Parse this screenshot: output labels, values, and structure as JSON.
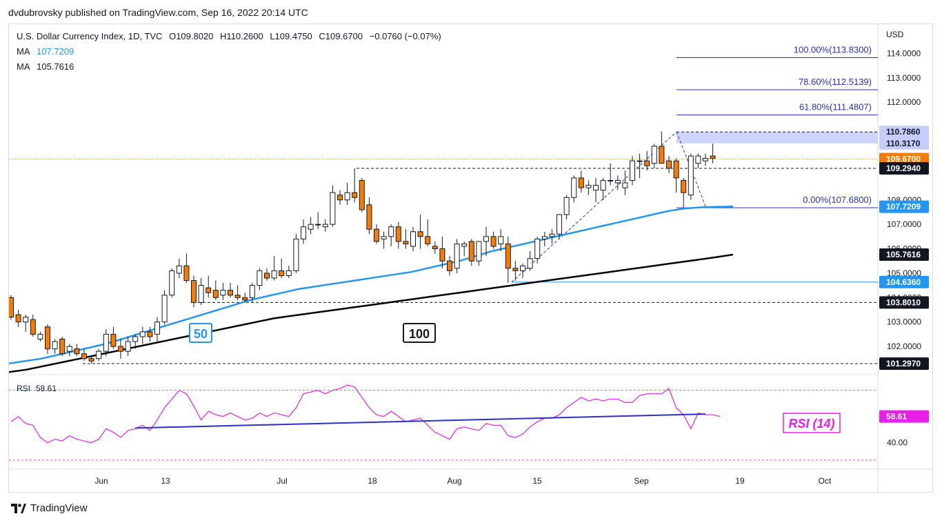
{
  "header": {
    "published": "dvdubrovsky published on TradingView.com, Sep 16, 2022 20:14 UTC",
    "symbol": "U.S. Dollar Currency Index, 1D, TVC",
    "open": "O109.8020",
    "high": "H110.2600",
    "low": "L109.4750",
    "close": "C109.6700",
    "change": "−0.0760 (−0.07%)",
    "ma1_label": "MA",
    "ma1_value": "107.7209",
    "ma2_label": "MA",
    "ma2_value": "105.7616"
  },
  "footer": {
    "brand": "TradingView"
  },
  "colors": {
    "up_body": "#ffffff",
    "down_body": "#f57c00",
    "candle_border": "#131722",
    "ma50": "#2196f3",
    "ma100": "#000000",
    "rsi": "#e91ee9",
    "fib": "#2a2ec8",
    "zone": "#c6cdfc",
    "price_line": "#f57c00"
  },
  "chart_data": {
    "type": "candlestick",
    "y_axis_label": "USD",
    "ylim": [
      100.9,
      115.2
    ],
    "y_ticks": [
      "114.0000",
      "113.0000",
      "112.0000",
      "108.0000",
      "107.0000",
      "106.0000",
      "105.0000",
      "104.0000",
      "103.0000",
      "102.0000"
    ],
    "x_ticks": [
      "Jun",
      "13",
      "Jul",
      "18",
      "Aug",
      "15",
      "Sep",
      "19",
      "Oct"
    ],
    "candles": [
      {
        "o": 104.0,
        "h": 104.1,
        "l": 103.1,
        "c": 103.2
      },
      {
        "o": 103.3,
        "h": 103.5,
        "l": 102.8,
        "c": 103.0
      },
      {
        "o": 103.0,
        "h": 103.3,
        "l": 102.6,
        "c": 103.2
      },
      {
        "o": 103.1,
        "h": 103.3,
        "l": 102.4,
        "c": 102.5
      },
      {
        "o": 102.3,
        "h": 102.6,
        "l": 102.2,
        "c": 102.5
      },
      {
        "o": 102.8,
        "h": 102.9,
        "l": 101.7,
        "c": 101.9
      },
      {
        "o": 101.9,
        "h": 102.3,
        "l": 101.7,
        "c": 102.2
      },
      {
        "o": 102.3,
        "h": 102.4,
        "l": 101.6,
        "c": 101.7
      },
      {
        "o": 101.8,
        "h": 102.1,
        "l": 101.6,
        "c": 102.0
      },
      {
        "o": 101.9,
        "h": 102.1,
        "l": 101.6,
        "c": 101.7
      },
      {
        "o": 101.7,
        "h": 101.9,
        "l": 101.4,
        "c": 101.5
      },
      {
        "o": 101.5,
        "h": 101.6,
        "l": 101.3,
        "c": 101.4
      },
      {
        "o": 101.5,
        "h": 101.9,
        "l": 101.4,
        "c": 101.8
      },
      {
        "o": 101.8,
        "h": 102.7,
        "l": 101.6,
        "c": 102.5
      },
      {
        "o": 102.5,
        "h": 102.8,
        "l": 101.9,
        "c": 102.0
      },
      {
        "o": 102.0,
        "h": 102.3,
        "l": 101.5,
        "c": 101.8
      },
      {
        "o": 101.8,
        "h": 102.4,
        "l": 101.6,
        "c": 102.2
      },
      {
        "o": 102.2,
        "h": 102.5,
        "l": 101.9,
        "c": 102.4
      },
      {
        "o": 102.4,
        "h": 102.8,
        "l": 102.1,
        "c": 102.6
      },
      {
        "o": 102.6,
        "h": 102.8,
        "l": 102.2,
        "c": 102.4
      },
      {
        "o": 102.5,
        "h": 103.2,
        "l": 102.2,
        "c": 103.0
      },
      {
        "o": 103.0,
        "h": 104.3,
        "l": 102.9,
        "c": 104.1
      },
      {
        "o": 104.1,
        "h": 105.2,
        "l": 104.0,
        "c": 105.1
      },
      {
        "o": 105.0,
        "h": 105.6,
        "l": 104.8,
        "c": 105.3
      },
      {
        "o": 105.3,
        "h": 105.8,
        "l": 104.6,
        "c": 104.7
      },
      {
        "o": 104.7,
        "h": 104.9,
        "l": 103.6,
        "c": 103.8
      },
      {
        "o": 103.8,
        "h": 104.8,
        "l": 103.7,
        "c": 104.5
      },
      {
        "o": 104.4,
        "h": 104.9,
        "l": 104.0,
        "c": 104.2
      },
      {
        "o": 104.3,
        "h": 104.7,
        "l": 103.9,
        "c": 104.0
      },
      {
        "o": 104.1,
        "h": 104.6,
        "l": 103.9,
        "c": 104.3
      },
      {
        "o": 104.3,
        "h": 104.6,
        "l": 104.0,
        "c": 104.1
      },
      {
        "o": 104.1,
        "h": 104.5,
        "l": 103.9,
        "c": 104.0
      },
      {
        "o": 104.0,
        "h": 104.2,
        "l": 103.8,
        "c": 103.9
      },
      {
        "o": 104.0,
        "h": 104.6,
        "l": 103.8,
        "c": 104.5
      },
      {
        "o": 104.5,
        "h": 105.2,
        "l": 104.3,
        "c": 105.1
      },
      {
        "o": 105.0,
        "h": 105.2,
        "l": 104.7,
        "c": 104.8
      },
      {
        "o": 104.8,
        "h": 105.7,
        "l": 104.7,
        "c": 105.1
      },
      {
        "o": 105.1,
        "h": 105.6,
        "l": 104.8,
        "c": 104.9
      },
      {
        "o": 104.9,
        "h": 105.3,
        "l": 104.8,
        "c": 105.1
      },
      {
        "o": 105.1,
        "h": 106.6,
        "l": 105.0,
        "c": 106.4
      },
      {
        "o": 106.4,
        "h": 107.2,
        "l": 106.2,
        "c": 106.9
      },
      {
        "o": 106.8,
        "h": 107.3,
        "l": 106.6,
        "c": 107.0
      },
      {
        "o": 107.0,
        "h": 107.5,
        "l": 106.8,
        "c": 107.0
      },
      {
        "o": 106.9,
        "h": 107.2,
        "l": 106.7,
        "c": 107.0
      },
      {
        "o": 107.0,
        "h": 108.6,
        "l": 106.9,
        "c": 108.3
      },
      {
        "o": 108.2,
        "h": 108.4,
        "l": 107.8,
        "c": 108.0
      },
      {
        "o": 108.0,
        "h": 108.7,
        "l": 107.8,
        "c": 108.3
      },
      {
        "o": 108.3,
        "h": 109.3,
        "l": 107.9,
        "c": 108.1
      },
      {
        "o": 108.8,
        "h": 108.9,
        "l": 107.5,
        "c": 107.6
      },
      {
        "o": 107.8,
        "h": 108.1,
        "l": 106.6,
        "c": 106.8
      },
      {
        "o": 106.8,
        "h": 107.0,
        "l": 106.2,
        "c": 106.3
      },
      {
        "o": 106.4,
        "h": 106.7,
        "l": 106.0,
        "c": 106.5
      },
      {
        "o": 106.5,
        "h": 107.0,
        "l": 106.1,
        "c": 106.9
      },
      {
        "o": 106.9,
        "h": 107.1,
        "l": 106.0,
        "c": 106.3
      },
      {
        "o": 106.3,
        "h": 106.8,
        "l": 106.0,
        "c": 106.2
      },
      {
        "o": 106.1,
        "h": 106.9,
        "l": 105.9,
        "c": 106.7
      },
      {
        "o": 106.7,
        "h": 107.4,
        "l": 106.0,
        "c": 106.5
      },
      {
        "o": 106.5,
        "h": 107.2,
        "l": 106.1,
        "c": 106.2
      },
      {
        "o": 106.1,
        "h": 106.3,
        "l": 105.8,
        "c": 106.0
      },
      {
        "o": 106.0,
        "h": 106.5,
        "l": 105.2,
        "c": 105.5
      },
      {
        "o": 105.5,
        "h": 105.7,
        "l": 104.9,
        "c": 105.1
      },
      {
        "o": 105.2,
        "h": 106.4,
        "l": 105.0,
        "c": 106.2
      },
      {
        "o": 106.1,
        "h": 106.3,
        "l": 105.7,
        "c": 106.2
      },
      {
        "o": 106.3,
        "h": 106.4,
        "l": 105.3,
        "c": 105.5
      },
      {
        "o": 105.5,
        "h": 106.3,
        "l": 105.3,
        "c": 106.3
      },
      {
        "o": 106.3,
        "h": 106.9,
        "l": 105.7,
        "c": 106.5
      },
      {
        "o": 106.5,
        "h": 106.7,
        "l": 106.0,
        "c": 106.1
      },
      {
        "o": 106.2,
        "h": 106.8,
        "l": 105.9,
        "c": 106.5
      },
      {
        "o": 106.2,
        "h": 106.5,
        "l": 104.6,
        "c": 105.2
      },
      {
        "o": 105.2,
        "h": 105.5,
        "l": 104.7,
        "c": 105.1
      },
      {
        "o": 105.1,
        "h": 105.4,
        "l": 104.8,
        "c": 105.3
      },
      {
        "o": 105.2,
        "h": 105.9,
        "l": 105.1,
        "c": 105.6
      },
      {
        "o": 105.6,
        "h": 106.5,
        "l": 105.4,
        "c": 106.4
      },
      {
        "o": 106.4,
        "h": 106.7,
        "l": 106.1,
        "c": 106.5
      },
      {
        "o": 106.5,
        "h": 106.8,
        "l": 106.2,
        "c": 106.6
      },
      {
        "o": 106.6,
        "h": 107.3,
        "l": 106.4,
        "c": 107.4
      },
      {
        "o": 107.4,
        "h": 108.2,
        "l": 107.2,
        "c": 108.1
      },
      {
        "o": 108.1,
        "h": 109.0,
        "l": 107.9,
        "c": 108.9
      },
      {
        "o": 108.9,
        "h": 109.2,
        "l": 108.3,
        "c": 108.5
      },
      {
        "o": 108.5,
        "h": 108.8,
        "l": 108.2,
        "c": 108.6
      },
      {
        "o": 108.4,
        "h": 108.9,
        "l": 107.9,
        "c": 108.6
      },
      {
        "o": 108.4,
        "h": 108.9,
        "l": 108.0,
        "c": 108.8
      },
      {
        "o": 108.8,
        "h": 109.5,
        "l": 108.6,
        "c": 108.8
      },
      {
        "o": 108.7,
        "h": 109.0,
        "l": 108.4,
        "c": 108.8
      },
      {
        "o": 108.5,
        "h": 109.2,
        "l": 108.2,
        "c": 108.7
      },
      {
        "o": 108.8,
        "h": 109.8,
        "l": 108.6,
        "c": 109.6
      },
      {
        "o": 109.6,
        "h": 109.9,
        "l": 108.9,
        "c": 109.6
      },
      {
        "o": 109.6,
        "h": 110.0,
        "l": 109.2,
        "c": 109.4
      },
      {
        "o": 109.5,
        "h": 110.3,
        "l": 109.3,
        "c": 110.2
      },
      {
        "o": 110.2,
        "h": 110.8,
        "l": 109.5,
        "c": 109.5
      },
      {
        "o": 109.6,
        "h": 109.8,
        "l": 109.1,
        "c": 109.3
      },
      {
        "o": 109.6,
        "h": 109.7,
        "l": 108.3,
        "c": 108.9
      },
      {
        "o": 108.8,
        "h": 108.9,
        "l": 107.7,
        "c": 108.3
      },
      {
        "o": 108.2,
        "h": 109.9,
        "l": 108.0,
        "c": 109.8
      },
      {
        "o": 109.5,
        "h": 109.9,
        "l": 109.3,
        "c": 109.8
      },
      {
        "o": 109.6,
        "h": 109.9,
        "l": 109.4,
        "c": 109.7
      },
      {
        "o": 109.8,
        "h": 110.3,
        "l": 109.5,
        "c": 109.7
      }
    ],
    "ma50": {
      "name": "50",
      "values": [
        101.3,
        101.4,
        101.5,
        101.65,
        101.8,
        101.95,
        102.1,
        102.3,
        102.5,
        102.7,
        102.9,
        103.1,
        103.3,
        103.5,
        103.7,
        103.9,
        104.05,
        104.2,
        104.35,
        104.45,
        104.55,
        104.65,
        104.75,
        104.85,
        104.95,
        105.05,
        105.2,
        105.35,
        105.5,
        105.7,
        105.9,
        106.05,
        106.2,
        106.35,
        106.5,
        106.65,
        106.8,
        106.95,
        107.1,
        107.25,
        107.4,
        107.55,
        107.65,
        107.7,
        107.72,
        107.73
      ]
    },
    "ma100": {
      "name": "100",
      "values": [
        100.95,
        101.05,
        101.2,
        101.35,
        101.5,
        101.65,
        101.8,
        101.95,
        102.1,
        102.25,
        102.4,
        102.55,
        102.7,
        102.85,
        103.0,
        103.15,
        103.25,
        103.35,
        103.45,
        103.55,
        103.65,
        103.75,
        103.85,
        103.95,
        104.05,
        104.15,
        104.25,
        104.35,
        104.45,
        104.55,
        104.65,
        104.75,
        104.85,
        104.95,
        105.05,
        105.15,
        105.25,
        105.35,
        105.45,
        105.55,
        105.65,
        105.76
      ]
    },
    "annotations": {
      "fib_100": "100.00%(113.8300)",
      "fib_786": "78.60%(112.5139)",
      "fib_618": "61.80%(111.4807)",
      "fib_0": "0.00%(107.6800)",
      "ma50_label": "50",
      "ma100_label": "100"
    },
    "price_tags": [
      {
        "label": "110.7860",
        "value": 110.786,
        "bg": "#c6cdfc",
        "fg": "#131722"
      },
      {
        "label": "110.3170",
        "value": 110.317,
        "bg": "#c6cdfc",
        "fg": "#131722"
      },
      {
        "label": "109.6700",
        "value": 109.67,
        "bg": "#f57c00",
        "fg": "#ffffff"
      },
      {
        "label": "109.2940",
        "value": 109.294,
        "bg": "#131722",
        "fg": "#ffffff"
      },
      {
        "label": "107.7209",
        "value": 107.7209,
        "bg": "#2196f3",
        "fg": "#ffffff"
      },
      {
        "label": "105.7616",
        "value": 105.7616,
        "bg": "#131722",
        "fg": "#ffffff"
      },
      {
        "label": "104.6360",
        "value": 104.636,
        "bg": "#2196f3",
        "fg": "#ffffff"
      },
      {
        "label": "103.8010",
        "value": 103.801,
        "bg": "#131722",
        "fg": "#ffffff"
      },
      {
        "label": "101.2970",
        "value": 101.297,
        "bg": "#131722",
        "fg": "#ffffff"
      }
    ],
    "rsi": {
      "label": "RSI",
      "value": "58.61",
      "title": "RSI (14)",
      "tick": "40.00",
      "levels": [
        70,
        30
      ],
      "ylim": [
        28,
        75
      ],
      "values": [
        52,
        55,
        51,
        50,
        43,
        40,
        42,
        41,
        44,
        42,
        41,
        40,
        42,
        48,
        46,
        43,
        47,
        48,
        50,
        47,
        53,
        60,
        65,
        70,
        68,
        61,
        53,
        58,
        56,
        55,
        57,
        55,
        53,
        54,
        57,
        55,
        57,
        56,
        55,
        60,
        68,
        69,
        70,
        68,
        70,
        71,
        73,
        72,
        66,
        60,
        56,
        55,
        58,
        55,
        52,
        53,
        54,
        50,
        46,
        44,
        42,
        48,
        49,
        48,
        47,
        51,
        50,
        50,
        44,
        43,
        45,
        49,
        52,
        54,
        54,
        56,
        60,
        63,
        66,
        64,
        65,
        64,
        65,
        65,
        63,
        63,
        67,
        68,
        68,
        68,
        71,
        60,
        56,
        48,
        57,
        56,
        56,
        55
      ],
      "div_line": [
        17,
        95
      ]
    }
  }
}
